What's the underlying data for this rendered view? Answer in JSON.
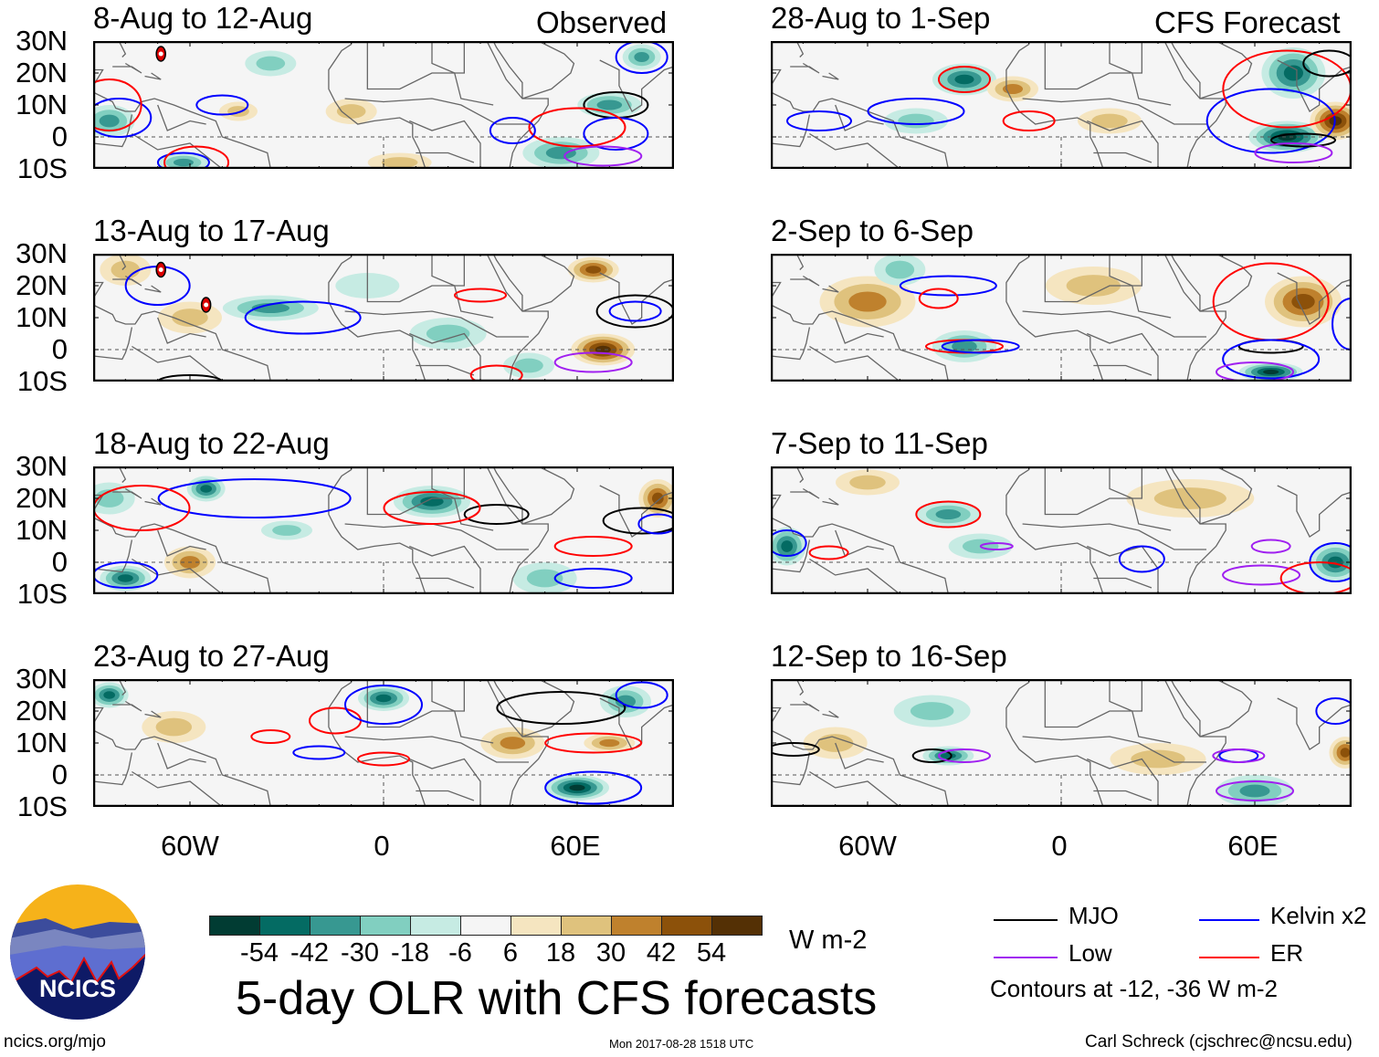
{
  "header": {
    "observed_label": "Observed",
    "forecast_label": "CFS Forecast"
  },
  "lat_labels": [
    "30N",
    "20N",
    "10N",
    "0",
    "10S"
  ],
  "lon_labels": [
    "60W",
    "0",
    "60E"
  ],
  "chart_data": {
    "type": "heatmap",
    "title": "5-day OLR with CFS forecasts",
    "units": "W m-2",
    "lon_range": [
      -90,
      90
    ],
    "lat_range": [
      -10,
      30
    ],
    "levels": [
      -54,
      -42,
      -30,
      -18,
      -6,
      6,
      18,
      30,
      42,
      54
    ],
    "level_colors": [
      "#013c33",
      "#046b63",
      "#379891",
      "#81cfc0",
      "#c6ebe3",
      "#f5f5f5",
      "#f5e5c0",
      "#dfc27d",
      "#bf812d",
      "#8c510a",
      "#543005"
    ],
    "contour_note": "Contours at -12, -36 W m-2",
    "contour_colors": {
      "MJO": "#000000",
      "Kelvin": "#0000ff",
      "Low": "#a020f0",
      "ER": "#ff0000"
    },
    "panels": [
      {
        "title": "8-Aug to 12-Aug",
        "col": 0,
        "row": 0,
        "blobs": [
          [
            -85,
            5,
            8,
            5,
            -40
          ],
          [
            -62,
            -8,
            8,
            3,
            -30
          ],
          [
            -35,
            23,
            8,
            4,
            -18
          ],
          [
            -10,
            8,
            8,
            4,
            18
          ],
          [
            -45,
            8,
            6,
            3,
            18
          ],
          [
            55,
            -5,
            12,
            5,
            -30
          ],
          [
            70,
            10,
            10,
            4,
            -40
          ],
          [
            80,
            25,
            6,
            4,
            -30
          ],
          [
            5,
            -8,
            10,
            3,
            18
          ]
        ],
        "contours": [
          [
            "Kelvin",
            -82,
            6,
            10,
            6
          ],
          [
            "Kelvin",
            -50,
            10,
            8,
            3
          ],
          [
            "Kelvin",
            -62,
            -8,
            8,
            3
          ],
          [
            "ER",
            -85,
            10,
            10,
            8
          ],
          [
            "ER",
            -58,
            -8,
            10,
            5
          ],
          [
            "MJO",
            72,
            10,
            10,
            4
          ],
          [
            "Kelvin",
            72,
            1,
            10,
            5
          ],
          [
            "ER",
            60,
            3,
            15,
            6
          ],
          [
            "Kelvin",
            40,
            2,
            7,
            4
          ],
          [
            "Kelvin",
            80,
            25,
            8,
            5
          ],
          [
            "Low",
            68,
            -6,
            12,
            3
          ]
        ],
        "storms": [
          [
            -69,
            26
          ]
        ]
      },
      {
        "title": "13-Aug to 17-Aug",
        "col": 0,
        "row": 1,
        "blobs": [
          [
            -35,
            13,
            15,
            4,
            -30
          ],
          [
            -80,
            25,
            8,
            5,
            18
          ],
          [
            -60,
            10,
            10,
            5,
            18
          ],
          [
            68,
            0,
            10,
            5,
            54
          ],
          [
            65,
            25,
            8,
            4,
            42
          ],
          [
            20,
            5,
            12,
            5,
            -18
          ],
          [
            -5,
            20,
            10,
            4,
            -6
          ],
          [
            45,
            -5,
            8,
            4,
            -18
          ]
        ],
        "contours": [
          [
            "Kelvin",
            -25,
            10,
            18,
            5
          ],
          [
            "ER",
            30,
            17,
            8,
            2
          ],
          [
            "MJO",
            78,
            12,
            12,
            5
          ],
          [
            "Kelvin",
            78,
            12,
            8,
            3
          ],
          [
            "Low",
            65,
            -4,
            12,
            3
          ],
          [
            "ER",
            35,
            -8,
            8,
            3
          ],
          [
            "Kelvin",
            -70,
            20,
            10,
            6
          ],
          [
            "MJO",
            -60,
            -10,
            10,
            2
          ]
        ],
        "storms": [
          [
            -69,
            25
          ],
          [
            -55,
            14
          ]
        ]
      },
      {
        "title": "18-Aug to 22-Aug",
        "col": 0,
        "row": 2,
        "blobs": [
          [
            -55,
            23,
            6,
            4,
            -42
          ],
          [
            15,
            19,
            12,
            5,
            -42
          ],
          [
            -85,
            20,
            8,
            5,
            -18
          ],
          [
            -80,
            -5,
            8,
            4,
            -42
          ],
          [
            85,
            20,
            6,
            6,
            42
          ],
          [
            -60,
            0,
            8,
            5,
            30
          ],
          [
            50,
            -5,
            10,
            5,
            -18
          ],
          [
            -30,
            10,
            8,
            3,
            -18
          ]
        ],
        "contours": [
          [
            "Kelvin",
            -40,
            20,
            30,
            6
          ],
          [
            "ER",
            -75,
            17,
            15,
            7
          ],
          [
            "MJO",
            35,
            15,
            10,
            3
          ],
          [
            "ER",
            15,
            17,
            15,
            5
          ],
          [
            "MJO",
            80,
            13,
            12,
            4
          ],
          [
            "Kelvin",
            85,
            12,
            6,
            3
          ],
          [
            "ER",
            65,
            5,
            12,
            3
          ],
          [
            "Kelvin",
            65,
            -5,
            12,
            3
          ],
          [
            "Kelvin",
            -80,
            -4,
            10,
            4
          ]
        ],
        "storms": []
      },
      {
        "title": "23-Aug to 27-Aug",
        "col": 0,
        "row": 3,
        "blobs": [
          [
            -85,
            25,
            6,
            4,
            -42
          ],
          [
            0,
            24,
            8,
            4,
            -42
          ],
          [
            60,
            -4,
            10,
            4,
            -54
          ],
          [
            75,
            23,
            8,
            5,
            -30
          ],
          [
            -65,
            15,
            10,
            5,
            18
          ],
          [
            40,
            10,
            10,
            5,
            30
          ],
          [
            70,
            10,
            8,
            3,
            30
          ]
        ],
        "contours": [
          [
            "MJO",
            55,
            21,
            20,
            5
          ],
          [
            "ER",
            -15,
            17,
            8,
            4
          ],
          [
            "Kelvin",
            0,
            22,
            12,
            6
          ],
          [
            "ER",
            0,
            5,
            8,
            2
          ],
          [
            "Kelvin",
            -20,
            7,
            8,
            2
          ],
          [
            "Kelvin",
            65,
            -4,
            15,
            5
          ],
          [
            "ER",
            65,
            10,
            15,
            3
          ],
          [
            "Kelvin",
            80,
            25,
            8,
            4
          ],
          [
            "ER",
            -35,
            12,
            6,
            2
          ]
        ],
        "storms": []
      },
      {
        "title": "28-Aug to 1-Sep",
        "col": 1,
        "row": 0,
        "blobs": [
          [
            -30,
            18,
            10,
            5,
            -42
          ],
          [
            70,
            0,
            12,
            5,
            -54
          ],
          [
            72,
            20,
            10,
            8,
            -42
          ],
          [
            85,
            5,
            8,
            6,
            54
          ],
          [
            -15,
            15,
            8,
            4,
            30
          ],
          [
            -45,
            5,
            10,
            4,
            -18
          ],
          [
            15,
            5,
            10,
            4,
            18
          ]
        ],
        "contours": [
          [
            "ER",
            -30,
            18,
            8,
            4
          ],
          [
            "ER",
            -10,
            5,
            8,
            3
          ],
          [
            "Kelvin",
            -45,
            8,
            15,
            4
          ],
          [
            "Kelvin",
            -75,
            5,
            10,
            3
          ],
          [
            "Kelvin",
            65,
            5,
            20,
            10
          ],
          [
            "ER",
            70,
            15,
            20,
            12
          ],
          [
            "MJO",
            75,
            -1,
            10,
            2
          ],
          [
            "MJO",
            83,
            23,
            8,
            4
          ],
          [
            "Low",
            72,
            -5,
            12,
            3
          ]
        ],
        "storms": []
      },
      {
        "title": "2-Sep to 6-Sep",
        "col": 1,
        "row": 1,
        "blobs": [
          [
            -60,
            15,
            15,
            8,
            30
          ],
          [
            -30,
            1,
            10,
            5,
            -30
          ],
          [
            75,
            15,
            12,
            8,
            42
          ],
          [
            65,
            -7,
            10,
            3,
            -54
          ],
          [
            -50,
            25,
            8,
            5,
            -18
          ],
          [
            10,
            20,
            15,
            6,
            18
          ]
        ],
        "contours": [
          [
            "Kelvin",
            -35,
            20,
            15,
            3
          ],
          [
            "ER",
            -38,
            16,
            6,
            3
          ],
          [
            "ER",
            -30,
            1,
            12,
            2
          ],
          [
            "Kelvin",
            -25,
            1,
            12,
            2
          ],
          [
            "ER",
            65,
            15,
            18,
            12
          ],
          [
            "MJO",
            65,
            1,
            10,
            2
          ],
          [
            "Kelvin",
            65,
            -3,
            15,
            6
          ],
          [
            "Low",
            60,
            -7,
            12,
            3
          ],
          [
            "Kelvin",
            90,
            8,
            6,
            8
          ]
        ],
        "storms": []
      },
      {
        "title": "7-Sep to 11-Sep",
        "col": 1,
        "row": 2,
        "blobs": [
          [
            -35,
            15,
            10,
            4,
            -30
          ],
          [
            -85,
            5,
            6,
            6,
            -42
          ],
          [
            85,
            0,
            8,
            6,
            -42
          ],
          [
            -60,
            25,
            10,
            4,
            18
          ],
          [
            40,
            20,
            20,
            6,
            18
          ],
          [
            -25,
            5,
            10,
            4,
            -18
          ]
        ],
        "contours": [
          [
            "ER",
            -35,
            15,
            10,
            4
          ],
          [
            "Kelvin",
            -85,
            6,
            6,
            4
          ],
          [
            "ER",
            -72,
            3,
            6,
            2
          ],
          [
            "Kelvin",
            25,
            1,
            7,
            4
          ],
          [
            "Low",
            -20,
            5,
            5,
            1
          ],
          [
            "Low",
            62,
            -4,
            12,
            3
          ],
          [
            "Low",
            65,
            5,
            6,
            2
          ],
          [
            "Kelvin",
            85,
            0,
            8,
            6
          ],
          [
            "ER",
            80,
            -5,
            12,
            5
          ]
        ],
        "storms": []
      },
      {
        "title": "12-Sep to 16-Sep",
        "col": 1,
        "row": 3,
        "blobs": [
          [
            -35,
            6,
            8,
            3,
            -42
          ],
          [
            -70,
            10,
            10,
            5,
            18
          ],
          [
            60,
            -5,
            12,
            5,
            -30
          ],
          [
            88,
            7,
            5,
            5,
            42
          ],
          [
            -40,
            20,
            12,
            5,
            -18
          ],
          [
            30,
            5,
            15,
            5,
            18
          ]
        ],
        "contours": [
          [
            "MJO",
            -83,
            8,
            8,
            2
          ],
          [
            "MJO",
            -40,
            6,
            6,
            2
          ],
          [
            "Low",
            -30,
            6,
            8,
            2
          ],
          [
            "Low",
            60,
            -5,
            12,
            3
          ],
          [
            "Kelvin",
            55,
            6,
            6,
            2
          ],
          [
            "Low",
            55,
            6,
            8,
            2
          ],
          [
            "Kelvin",
            85,
            20,
            6,
            4
          ]
        ],
        "storms": []
      }
    ]
  },
  "legend": {
    "items": [
      {
        "label": "MJO",
        "key": "MJO"
      },
      {
        "label": "Kelvin x2",
        "key": "Kelvin"
      },
      {
        "label": "Low",
        "key": "Low"
      },
      {
        "label": "ER",
        "key": "ER"
      }
    ],
    "contour_text": "Contours at -12, -36 W m-2"
  },
  "colorbar": {
    "units": "W m-2",
    "labels": [
      "-54",
      "-42",
      "-30",
      "-18",
      "-6",
      "6",
      "18",
      "30",
      "42",
      "54"
    ]
  },
  "footer": {
    "title": "5-day OLR with CFS forecasts",
    "url": "ncics.org/mjo",
    "timestamp": "Mon 2017-08-28 1518 UTC",
    "author": "Carl Schreck (cjschrec@ncsu.edu)",
    "logo_text": "NCICS"
  }
}
